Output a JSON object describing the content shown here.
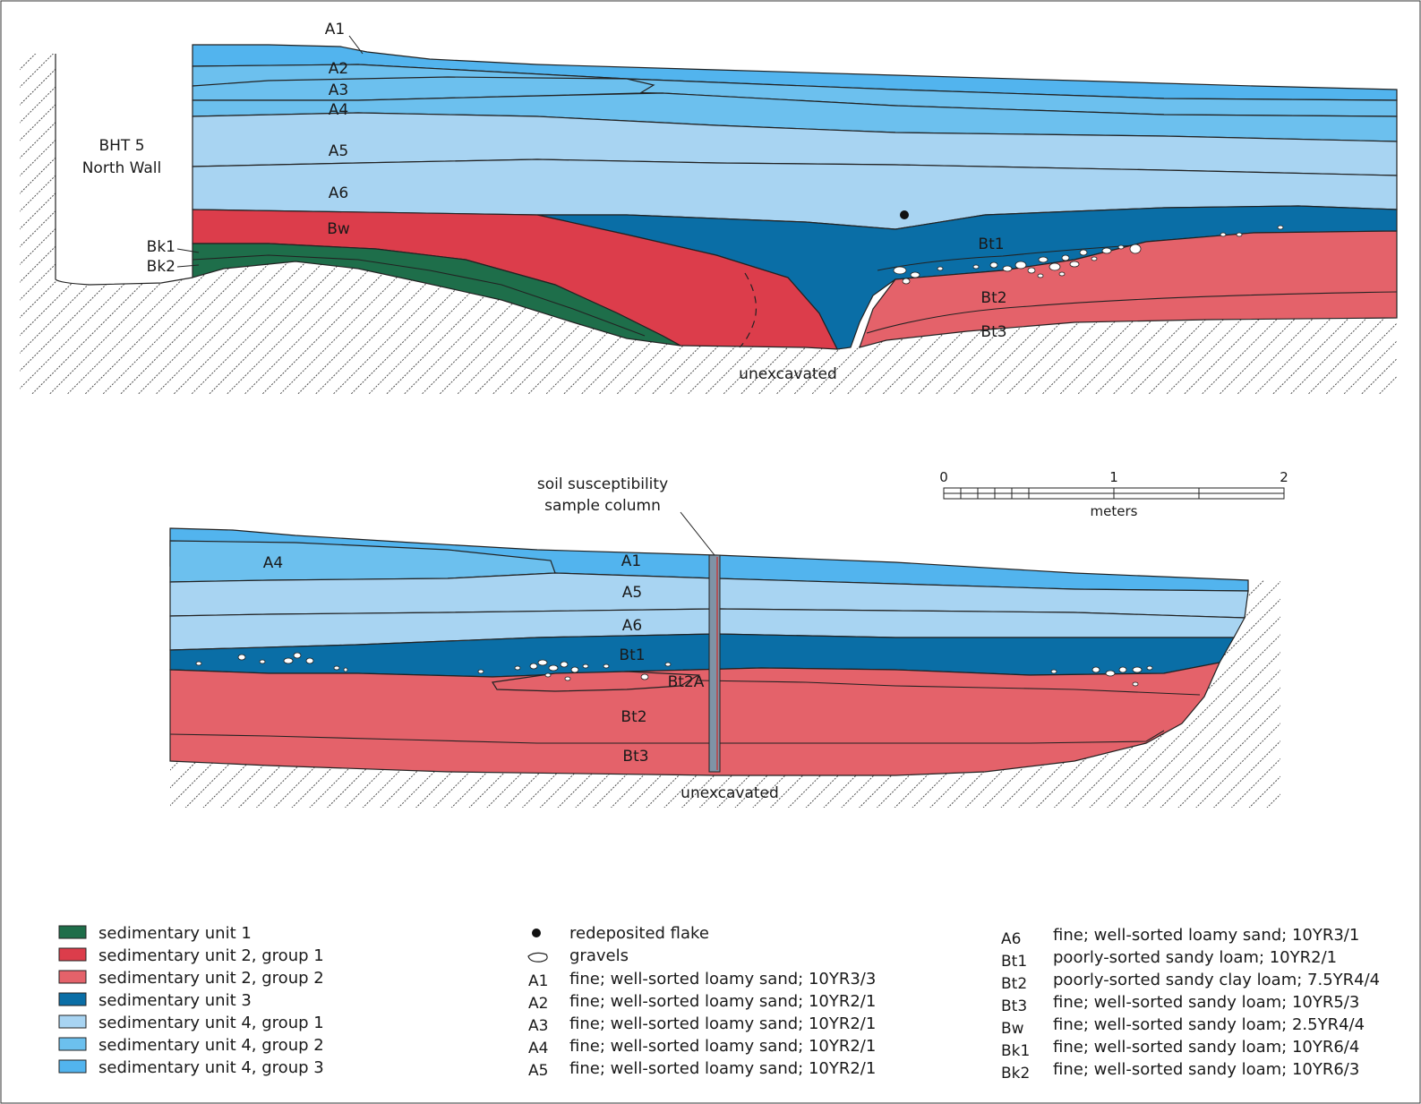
{
  "profile1": {
    "title_line1": "BHT 5",
    "title_line2": "North Wall",
    "horizons": {
      "a1": "A1",
      "a2": "A2",
      "a3": "A3",
      "a4": "A4",
      "a5": "A5",
      "a6": "A6",
      "bw": "Bw",
      "bt1": "Bt1",
      "bt2": "Bt2",
      "bt3": "Bt3",
      "bk1": "Bk1",
      "bk2": "Bk2"
    },
    "unexcavated": "unexcavated"
  },
  "profile2": {
    "horizons": {
      "a1": "A1",
      "a4": "A4",
      "a5": "A5",
      "a6": "A6",
      "bt1": "Bt1",
      "bt2a": "Bt2A",
      "bt2": "Bt2",
      "bt3": "Bt3"
    },
    "unexcavated": "unexcavated",
    "sample_column_line1": "soil susceptibility",
    "sample_column_line2": "sample column"
  },
  "scale_bar": {
    "ticks": [
      "0",
      "1",
      "2"
    ],
    "unit": "meters"
  },
  "colors": {
    "sedimentary_unit_1": "#1e6e4a",
    "sedimentary_unit_2_group_1": "#dc3d4b",
    "sedimentary_unit_2_group_2": "#e4626a",
    "sedimentary_unit_3": "#0a6ea6",
    "sedimentary_unit_4_group_1": "#a8d4f2",
    "sedimentary_unit_4_group_2": "#6cc0ee",
    "sedimentary_unit_4_group_3": "#52b4ee"
  },
  "legend": {
    "units": [
      {
        "label": "sedimentary unit 1",
        "color": "#1e6e4a"
      },
      {
        "label": "sedimentary unit 2, group 1",
        "color": "#dc3d4b"
      },
      {
        "label": "sedimentary unit 2, group 2",
        "color": "#e4626a"
      },
      {
        "label": "sedimentary unit 3",
        "color": "#0a6ea6"
      },
      {
        "label": "sedimentary unit 4, group 1",
        "color": "#a8d4f2"
      },
      {
        "label": "sedimentary unit 4, group 2",
        "color": "#6cc0ee"
      },
      {
        "label": "sedimentary unit 4, group 3",
        "color": "#52b4ee"
      }
    ],
    "symbols": [
      {
        "icon": "filled-circle-icon",
        "label": "redeposited flake"
      },
      {
        "icon": "gravel-outline-icon",
        "label": "gravels"
      }
    ],
    "descriptions_left": [
      {
        "code": "A1",
        "text": "fine; well-sorted loamy sand; 10YR3/3"
      },
      {
        "code": "A2",
        "text": "fine; well-sorted loamy sand; 10YR2/1"
      },
      {
        "code": "A3",
        "text": "fine; well-sorted loamy sand; 10YR2/1"
      },
      {
        "code": "A4",
        "text": "fine; well-sorted loamy sand; 10YR2/1"
      },
      {
        "code": "A5",
        "text": "fine; well-sorted loamy sand; 10YR2/1"
      }
    ],
    "descriptions_right": [
      {
        "code": "A6",
        "text": "fine; well-sorted loamy sand; 10YR3/1"
      },
      {
        "code": "Bt1",
        "text": "poorly-sorted sandy loam; 10YR2/1"
      },
      {
        "code": "Bt2",
        "text": "poorly-sorted sandy clay loam; 7.5YR4/4"
      },
      {
        "code": "Bt3",
        "text": "fine; well-sorted sandy loam; 10YR5/3"
      },
      {
        "code": "Bw",
        "text": "fine; well-sorted sandy loam; 2.5YR4/4"
      },
      {
        "code": "Bk1",
        "text": "fine; well-sorted sandy loam; 10YR6/4"
      },
      {
        "code": "Bk2",
        "text": "fine; well-sorted sandy loam; 10YR6/3"
      }
    ]
  }
}
